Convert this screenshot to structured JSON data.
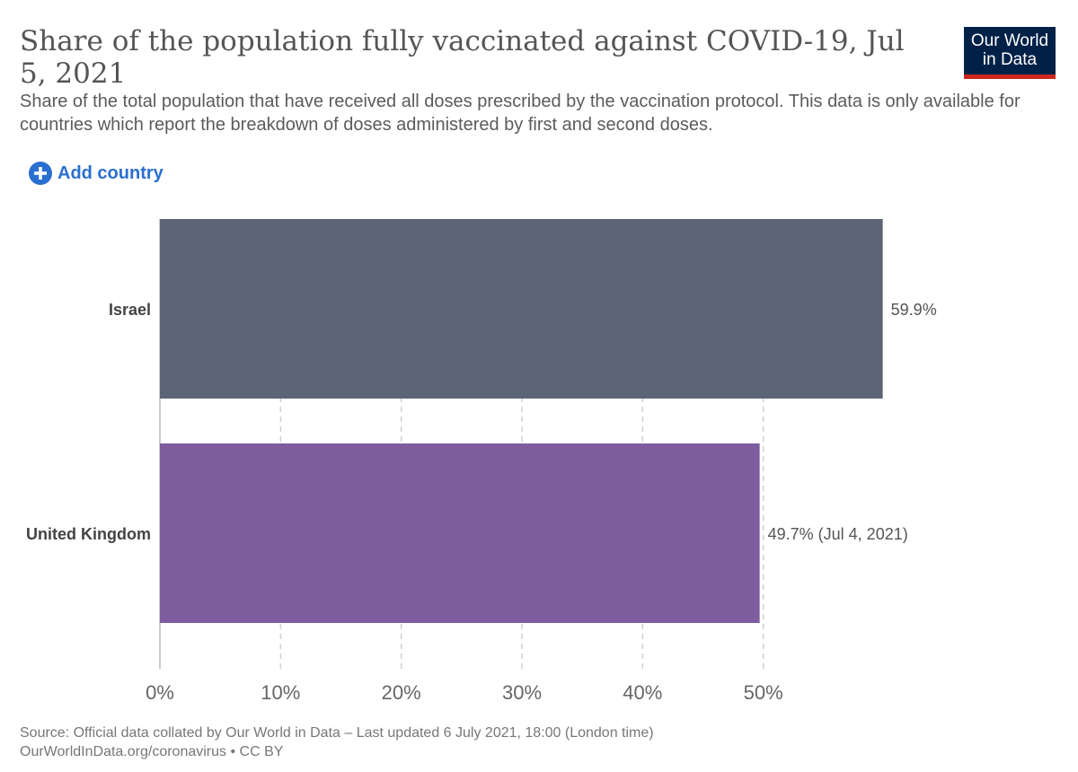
{
  "header": {
    "title": "Share of the population fully vaccinated against COVID-19, Jul 5, 2021",
    "subtitle": "Share of the total population that have received all doses prescribed by the vaccination protocol. This data is only available for countries which report the breakdown of doses administered by first and second doses.",
    "logo_line1": "Our World",
    "logo_line2": "in Data",
    "add_country_label": "Add country",
    "add_icon": "plus-circle-icon"
  },
  "chart_data": {
    "type": "bar",
    "orientation": "horizontal",
    "title": "Share of the population fully vaccinated against COVID-19, Jul 5, 2021",
    "categories": [
      "Israel",
      "United Kingdom"
    ],
    "values": [
      59.9,
      49.7
    ],
    "value_labels": [
      "59.9%",
      "49.7% (Jul 4, 2021)"
    ],
    "colors": [
      "#5b6576",
      "#7e5d9e"
    ],
    "xlim": [
      0,
      60
    ],
    "ticks": [
      0,
      10,
      20,
      30,
      40,
      50
    ],
    "tick_labels": [
      "0%",
      "10%",
      "20%",
      "30%",
      "40%",
      "50%"
    ],
    "grid": true
  },
  "footer": {
    "source": "Source: Official data collated by Our World in Data – Last updated 6 July 2021, 18:00 (London time)",
    "link": "OurWorldInData.org/coronavirus • CC BY"
  },
  "colors": {
    "logo_bg": "#002147",
    "logo_accent": "#ce261e",
    "link_blue": "#2a6fcf"
  }
}
